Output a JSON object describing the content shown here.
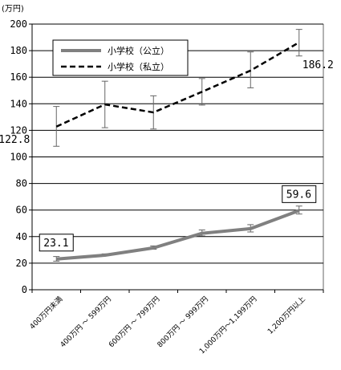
{
  "chart_data": {
    "type": "line",
    "unit_label": "(万円)",
    "categories": [
      "400万円未満",
      "400万円 ～ 599万円",
      "600万円 ～ 799万円",
      "800万円 ～ 999万円",
      "1,000万円～1,199万円",
      "1,200万円以上"
    ],
    "ylim": [
      0,
      200
    ],
    "yticks": [
      0,
      20,
      40,
      60,
      80,
      100,
      120,
      140,
      160,
      180,
      200
    ],
    "grid": true,
    "legend_position": "top-left",
    "series": [
      {
        "name": "小学校（公立）",
        "values": [
          23.1,
          26.0,
          31.5,
          42.5,
          46.0,
          59.6
        ],
        "err_low": [
          21.5,
          25.5,
          30.5,
          40.5,
          43.5,
          57.0
        ],
        "err_high": [
          25.0,
          27.0,
          33.0,
          45.0,
          49.0,
          63.0
        ],
        "style": "solid",
        "color": "#808080"
      },
      {
        "name": "小学校（私立）",
        "values": [
          122.8,
          139.5,
          133.5,
          149.0,
          165.0,
          186.2
        ],
        "err_low": [
          108.0,
          122.0,
          121.0,
          139.0,
          152.0,
          176.0
        ],
        "err_high": [
          138.0,
          157.0,
          146.0,
          159.0,
          179.0,
          196.0
        ],
        "style": "dashed",
        "color": "#000000"
      }
    ],
    "annotations": [
      {
        "series": 0,
        "index": 0,
        "text": "23.1",
        "boxed": true
      },
      {
        "series": 0,
        "index": 5,
        "text": "59.6",
        "boxed": true
      },
      {
        "series": 1,
        "index": 0,
        "text": "122.8",
        "boxed": false
      },
      {
        "series": 1,
        "index": 5,
        "text": "186.2",
        "boxed": false
      }
    ]
  }
}
